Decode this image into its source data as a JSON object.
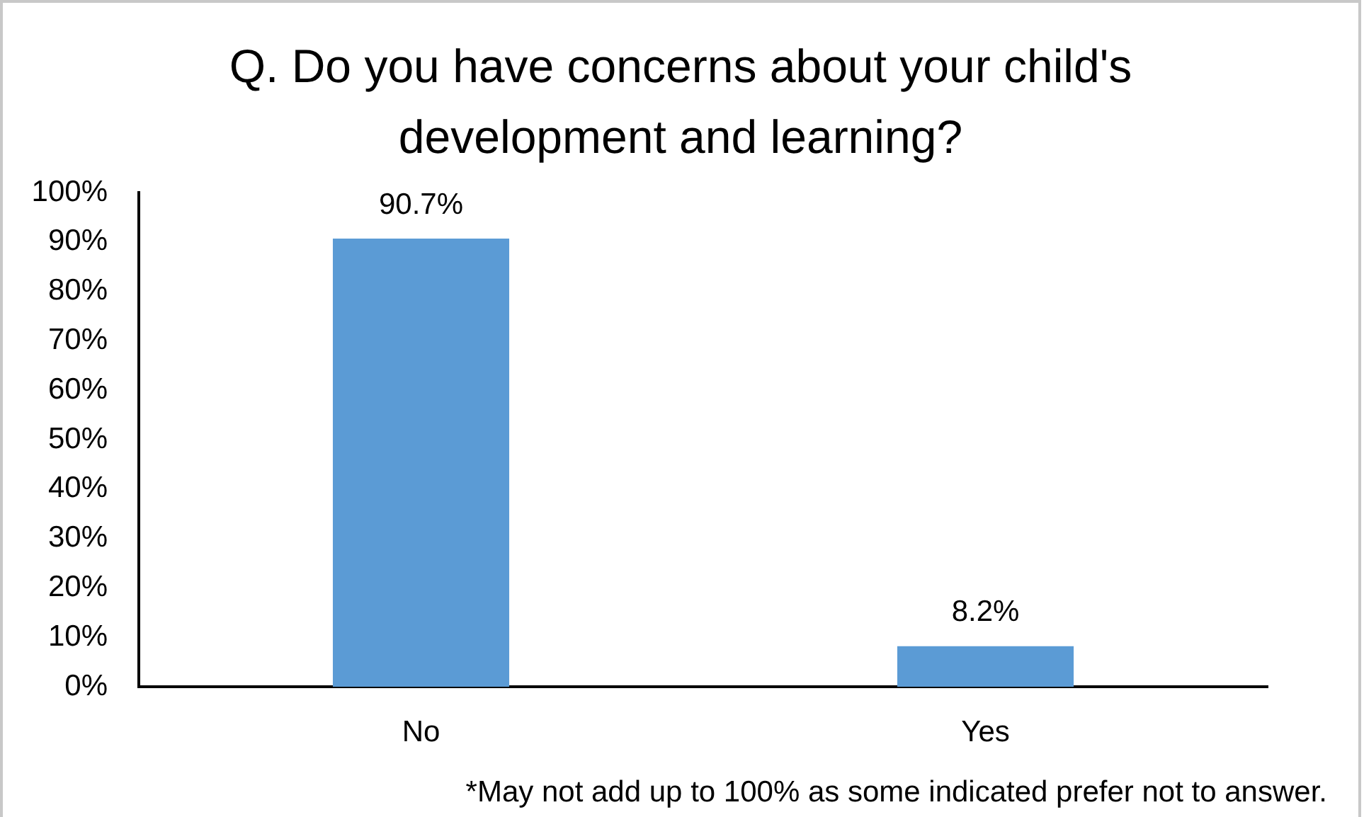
{
  "chart_data": {
    "type": "bar",
    "title": "Q. Do you have concerns about your child's development and learning?",
    "categories": [
      "No",
      "Yes"
    ],
    "values": [
      90.7,
      8.2
    ],
    "color": "#5b9bd5",
    "value_labels": [
      "90.7%",
      "8.2%"
    ],
    "ylim": [
      0,
      100
    ],
    "yticks": [
      {
        "value": 0,
        "label": "0%"
      },
      {
        "value": 10,
        "label": "10%"
      },
      {
        "value": 20,
        "label": "20%"
      },
      {
        "value": 30,
        "label": "30%"
      },
      {
        "value": 40,
        "label": "40%"
      },
      {
        "value": 50,
        "label": "50%"
      },
      {
        "value": 60,
        "label": "60%"
      },
      {
        "value": 70,
        "label": "70%"
      },
      {
        "value": 80,
        "label": "80%"
      },
      {
        "value": 90,
        "label": "90%"
      },
      {
        "value": 100,
        "label": "100%"
      }
    ],
    "annotations": [
      "*May not add up to 100% as some indicated prefer not to answer."
    ]
  }
}
